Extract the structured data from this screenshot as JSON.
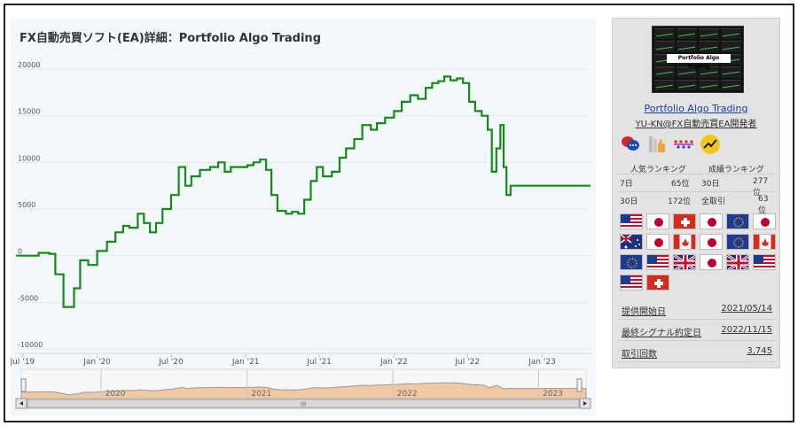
{
  "chart": {
    "title": "FX自動売買ソフト(EA)詳細：Portfolio Algo Trading",
    "y_ticks": [
      "20000",
      "15000",
      "10000",
      "5000",
      "0",
      "-5000",
      "-10000"
    ],
    "x_ticks": [
      "Jul '19",
      "Jan '20",
      "Jul '20",
      "Jan '21",
      "Jul '21",
      "Jan '22",
      "Jul '22",
      "Jan '23"
    ],
    "navigator_ticks": [
      "2020",
      "2021",
      "2022",
      "2023"
    ],
    "scroll_grip": "III",
    "line_color": "#168a16"
  },
  "chart_data": {
    "type": "line",
    "title": "FX自動売買ソフト(EA)詳細：Portfolio Algo Trading",
    "ylim": [
      -10000,
      20000
    ],
    "x_range": [
      "2019-07",
      "2023-04"
    ],
    "series": [
      {
        "points": [
          [
            "2019-06-15",
            0
          ],
          [
            "2019-07-10",
            0
          ],
          [
            "2019-08-10",
            300
          ],
          [
            "2019-09-05",
            200
          ],
          [
            "2019-09-20",
            -2000
          ],
          [
            "2019-10-10",
            -5500
          ],
          [
            "2019-11-05",
            -3500
          ],
          [
            "2019-11-20",
            -500
          ],
          [
            "2019-12-10",
            -1000
          ],
          [
            "2020-01-01",
            500
          ],
          [
            "2020-01-25",
            1500
          ],
          [
            "2020-02-15",
            2500
          ],
          [
            "2020-03-05",
            3200
          ],
          [
            "2020-03-20",
            3000
          ],
          [
            "2020-04-10",
            4500
          ],
          [
            "2020-04-25",
            3500
          ],
          [
            "2020-05-10",
            2500
          ],
          [
            "2020-05-25",
            3500
          ],
          [
            "2020-06-10",
            5000
          ],
          [
            "2020-07-01",
            6500
          ],
          [
            "2020-07-20",
            9500
          ],
          [
            "2020-08-05",
            7500
          ],
          [
            "2020-08-20",
            8500
          ],
          [
            "2020-09-10",
            9200
          ],
          [
            "2020-10-05",
            9500
          ],
          [
            "2020-10-25",
            10000
          ],
          [
            "2020-11-10",
            9000
          ],
          [
            "2020-11-25",
            9500
          ],
          [
            "2020-12-15",
            9500
          ],
          [
            "2021-01-05",
            9700
          ],
          [
            "2021-01-20",
            10000
          ],
          [
            "2021-02-05",
            10300
          ],
          [
            "2021-02-20",
            9200
          ],
          [
            "2021-03-05",
            6500
          ],
          [
            "2021-03-20",
            4800
          ],
          [
            "2021-04-10",
            4500
          ],
          [
            "2021-04-25",
            4700
          ],
          [
            "2021-05-10",
            4500
          ],
          [
            "2021-05-25",
            6000
          ],
          [
            "2021-06-10",
            8000
          ],
          [
            "2021-06-25",
            9500
          ],
          [
            "2021-07-10",
            8500
          ],
          [
            "2021-08-01",
            9000
          ],
          [
            "2021-08-20",
            10500
          ],
          [
            "2021-09-05",
            11500
          ],
          [
            "2021-09-25",
            12500
          ],
          [
            "2021-10-15",
            14000
          ],
          [
            "2021-11-05",
            13500
          ],
          [
            "2021-11-20",
            14200
          ],
          [
            "2021-12-10",
            14800
          ],
          [
            "2022-01-01",
            15500
          ],
          [
            "2022-01-20",
            16500
          ],
          [
            "2022-02-10",
            17200
          ],
          [
            "2022-03-01",
            16800
          ],
          [
            "2022-03-20",
            18000
          ],
          [
            "2022-04-05",
            18500
          ],
          [
            "2022-04-20",
            18700
          ],
          [
            "2022-05-05",
            19200
          ],
          [
            "2022-05-20",
            18800
          ],
          [
            "2022-06-05",
            19000
          ],
          [
            "2022-06-20",
            18500
          ],
          [
            "2022-07-05",
            16500
          ],
          [
            "2022-07-20",
            15500
          ],
          [
            "2022-08-05",
            15000
          ],
          [
            "2022-08-20",
            13500
          ],
          [
            "2022-08-30",
            9000
          ],
          [
            "2022-09-10",
            11500
          ],
          [
            "2022-09-20",
            14000
          ],
          [
            "2022-09-28",
            9500
          ],
          [
            "2022-10-05",
            6500
          ],
          [
            "2022-10-15",
            7500
          ],
          [
            "2022-11-15",
            7500
          ],
          [
            "2023-04-30",
            7500
          ]
        ]
      }
    ]
  },
  "side": {
    "thumbnail_label": "Portfolio Algo Trading",
    "ea_name": "Portfolio Algo Trading",
    "developer": "YU-KN@FX自動売買EA開発者",
    "rank_titles": {
      "popular": "人気ランキング",
      "performance": "成績ランキング"
    },
    "rank_rows": [
      {
        "lbl1": "7日",
        "val1": "65位",
        "lbl2": "30日",
        "val2": "277位"
      },
      {
        "lbl1": "30日",
        "val1": "172位",
        "lbl2": "全取引",
        "val2": "63位"
      }
    ],
    "flags": [
      "us",
      "jp",
      "ch",
      "jp",
      "eu",
      "jp",
      "au",
      "jp",
      "ca",
      "jp",
      "eu",
      "ca",
      "eu",
      "us",
      "gb",
      "jp",
      "gb",
      "us",
      "us",
      "ch"
    ],
    "info": [
      {
        "key": "提供開始日",
        "value": "2021/05/14"
      },
      {
        "key": "最終シグナル約定日",
        "value": "2022/11/15"
      },
      {
        "key": "取引回数",
        "value": "3,745"
      }
    ]
  }
}
